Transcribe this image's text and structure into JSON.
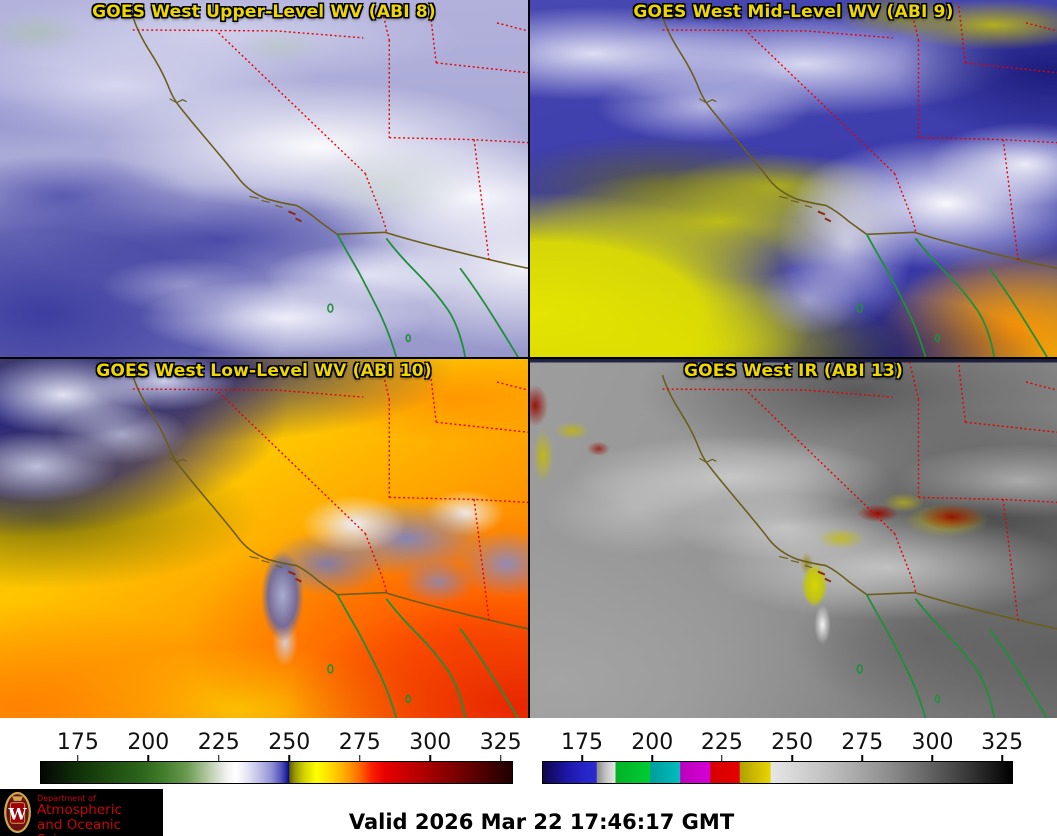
{
  "panels": [
    {
      "title": "GOES West Upper-Level WV (ABI 8)"
    },
    {
      "title": "GOES West Mid-Level WV (ABI 9)"
    },
    {
      "title": "GOES West Low-Level WV (ABI 10)"
    },
    {
      "title": "GOES West IR (ABI 13)"
    }
  ],
  "colorbars": [
    {
      "name": "wv-colorbar",
      "ticks": [
        "175",
        "200",
        "225",
        "250",
        "275",
        "300",
        "325"
      ],
      "tick_positions": [
        8.0,
        22.9,
        37.8,
        52.7,
        67.6,
        82.5,
        97.4
      ]
    },
    {
      "name": "ir-colorbar",
      "ticks": [
        "175",
        "200",
        "225",
        "250",
        "275",
        "300",
        "325"
      ],
      "tick_positions": [
        8.5,
        23.4,
        38.2,
        53.1,
        68.0,
        82.9,
        97.7
      ]
    }
  ],
  "footer": {
    "valid_text": "Valid 2026 Mar 22 17:46:17 GMT",
    "logo": {
      "monogram": "W",
      "dept_line": "Department of",
      "name_line1": "Atmospheric",
      "name_line2": "and Oceanic Sciences"
    }
  },
  "colors": {
    "panel_title_text": "#ecd800",
    "state_border": "#e60000",
    "coastline": "#6b5e1c",
    "baja_outline": "#1f8f3a",
    "logo_text": "#c5050c",
    "logo_background": "#000000",
    "page_background": "#ffffff"
  }
}
